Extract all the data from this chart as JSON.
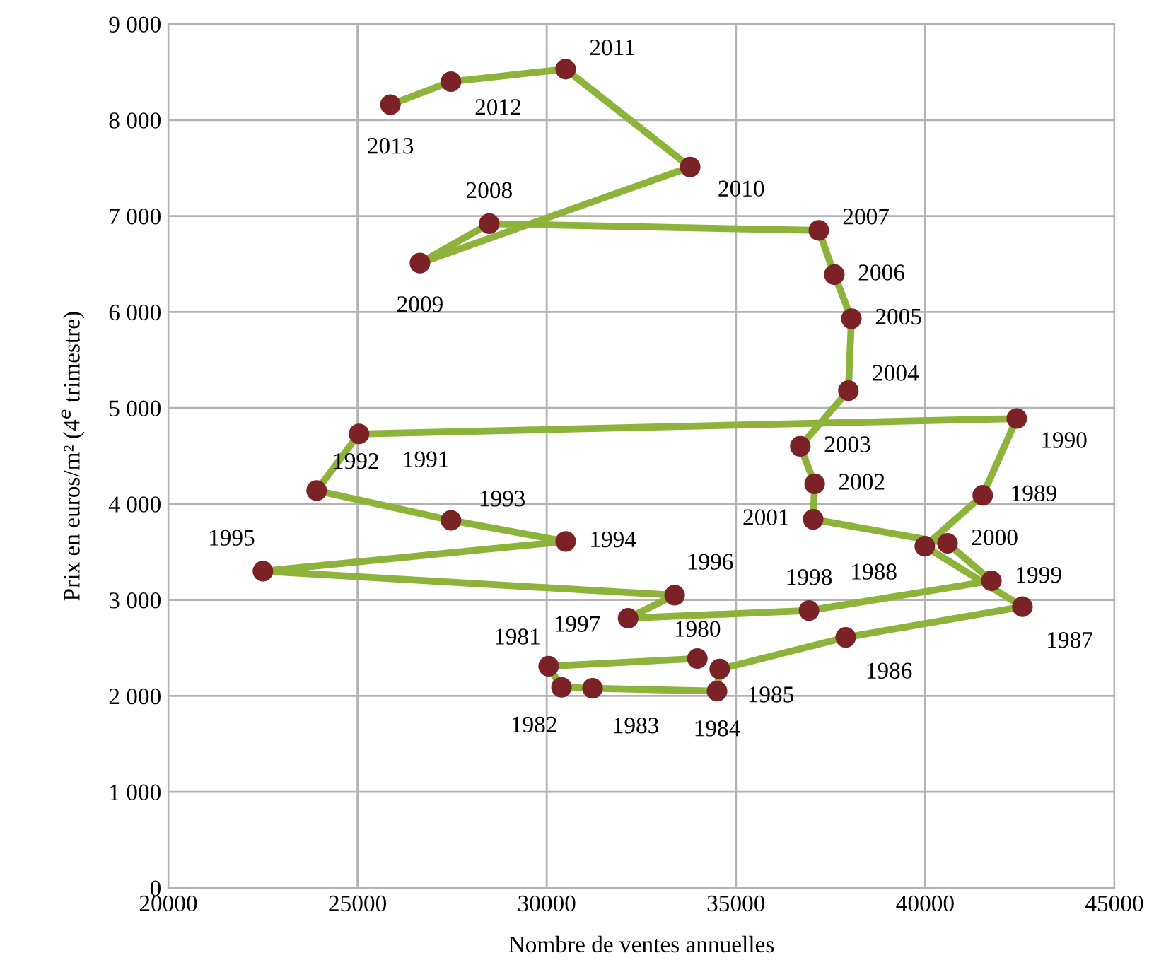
{
  "chart_data": {
    "type": "line",
    "xlabel": "Nombre de ventes annuelles",
    "ylabel": "Prix en euros/m² (4$^{e}$ trimestre)",
    "xlim": [
      20000,
      45000
    ],
    "xticks": [
      20000,
      25000,
      30000,
      35000,
      40000,
      45000
    ],
    "ylim": [
      0,
      9000
    ],
    "yticks": [
      0,
      {
        "value": 1000,
        "label": "1 000"
      },
      {
        "value": 2000,
        "label": "2 000"
      },
      {
        "value": 3000,
        "label": "3 000"
      },
      {
        "value": 4000,
        "label": "4 000"
      },
      {
        "value": 5000,
        "label": "5 000"
      },
      {
        "value": 6000,
        "label": "6 000"
      },
      {
        "value": 7000,
        "label": "7 000"
      },
      {
        "value": 8000,
        "label": "8 000"
      },
      {
        "value": 9000,
        "label": "9 000"
      }
    ],
    "grid": true,
    "marker": "circle",
    "line_style": "solid",
    "series": [
      {
        "color": "#8db33a",
        "colors": [
          "#7b2226",
          "#7b2226",
          "#7b2226",
          "#7b2226",
          "#7b2226",
          "#7b2226",
          "#7b2226",
          "#7b2226",
          "#7b2226",
          "#7b2226",
          "#7b2226",
          "#7b2226",
          "#7b2226",
          "#7b2226",
          "#7b2226",
          "#7b2226",
          "#7b2226",
          "#7b2226",
          "#7b2226",
          "#7b2226",
          "#7b2226",
          "#7b2226",
          "#7b2226",
          "#7b2226",
          "#7b2226",
          "#7b2226",
          "#7b2226",
          "#7b2226",
          "#7b2226",
          "#7b2226",
          "#7b2226",
          "#7b2226",
          "#7b2226",
          "#7b2226"
        ],
        "x": [
          33980,
          30050,
          30390,
          31210,
          34500,
          34570,
          37900,
          42570,
          39990,
          41520,
          42420,
          25040,
          23920,
          27470,
          30500,
          22500,
          33380,
          32150,
          36930,
          41750,
          40590,
          37040,
          37080,
          36700,
          37970,
          38050,
          37600,
          37190,
          28480,
          26650,
          33790,
          30500,
          27470,
          25870
        ],
        "values": [
          2390,
          2310,
          2090,
          2080,
          2050,
          2280,
          2610,
          2930,
          3560,
          4090,
          4890,
          4730,
          4140,
          3830,
          3610,
          3300,
          3050,
          2810,
          2890,
          3200,
          3590,
          3840,
          4210,
          4600,
          5180,
          5930,
          6390,
          6850,
          6920,
          6510,
          7510,
          8530,
          8400,
          8160
        ]
      }
    ],
    "annotations": [
      {
        "text": "1980",
        "x": 33980,
        "y": 2390
      },
      {
        "text": "1981",
        "x": 30050,
        "y": 2310
      },
      {
        "text": "1982",
        "x": 30390,
        "y": 2090
      },
      {
        "text": "1983",
        "x": 31210,
        "y": 2080
      },
      {
        "text": "1984",
        "x": 34500,
        "y": 2050
      },
      {
        "text": "1985",
        "x": 34570,
        "y": 2280
      },
      {
        "text": "1986",
        "x": 37900,
        "y": 2610
      },
      {
        "text": "1987",
        "x": 42570,
        "y": 2930
      },
      {
        "text": "1988",
        "x": 39990,
        "y": 3560
      },
      {
        "text": "1989",
        "x": 41520,
        "y": 4090
      },
      {
        "text": "1990",
        "x": 42420,
        "y": 4890
      },
      {
        "text": "1991",
        "x": 25040,
        "y": 4730
      },
      {
        "text": "1992",
        "x": 23920,
        "y": 4140
      },
      {
        "text": "1993",
        "x": 27470,
        "y": 3830
      },
      {
        "text": "1994",
        "x": 30500,
        "y": 3610
      },
      {
        "text": "1995",
        "x": 22500,
        "y": 3300
      },
      {
        "text": "1996",
        "x": 33380,
        "y": 3050
      },
      {
        "text": "1997",
        "x": 32150,
        "y": 2810
      },
      {
        "text": "1998",
        "x": 36930,
        "y": 2890
      },
      {
        "text": "1999",
        "x": 41750,
        "y": 3200
      },
      {
        "text": "2000",
        "x": 40590,
        "y": 3590
      },
      {
        "text": "2001",
        "x": 37040,
        "y": 3840
      },
      {
        "text": "2002",
        "x": 37080,
        "y": 4210
      },
      {
        "text": "2003",
        "x": 36700,
        "y": 4600
      },
      {
        "text": "2004",
        "x": 37970,
        "y": 5180
      },
      {
        "text": "2005",
        "x": 38050,
        "y": 5930
      },
      {
        "text": "2006",
        "x": 37600,
        "y": 6390
      },
      {
        "text": "2007",
        "x": 37190,
        "y": 6850
      },
      {
        "text": "2008",
        "x": 28480,
        "y": 6920
      },
      {
        "text": "2009",
        "x": 26650,
        "y": 6510
      },
      {
        "text": "2010",
        "x": 33790,
        "y": 7510
      },
      {
        "text": "2011",
        "x": 30500,
        "y": 8530
      },
      {
        "text": "2012",
        "x": 27470,
        "y": 8400
      },
      {
        "text": "2013",
        "x": 25870,
        "y": 8160
      }
    ]
  }
}
